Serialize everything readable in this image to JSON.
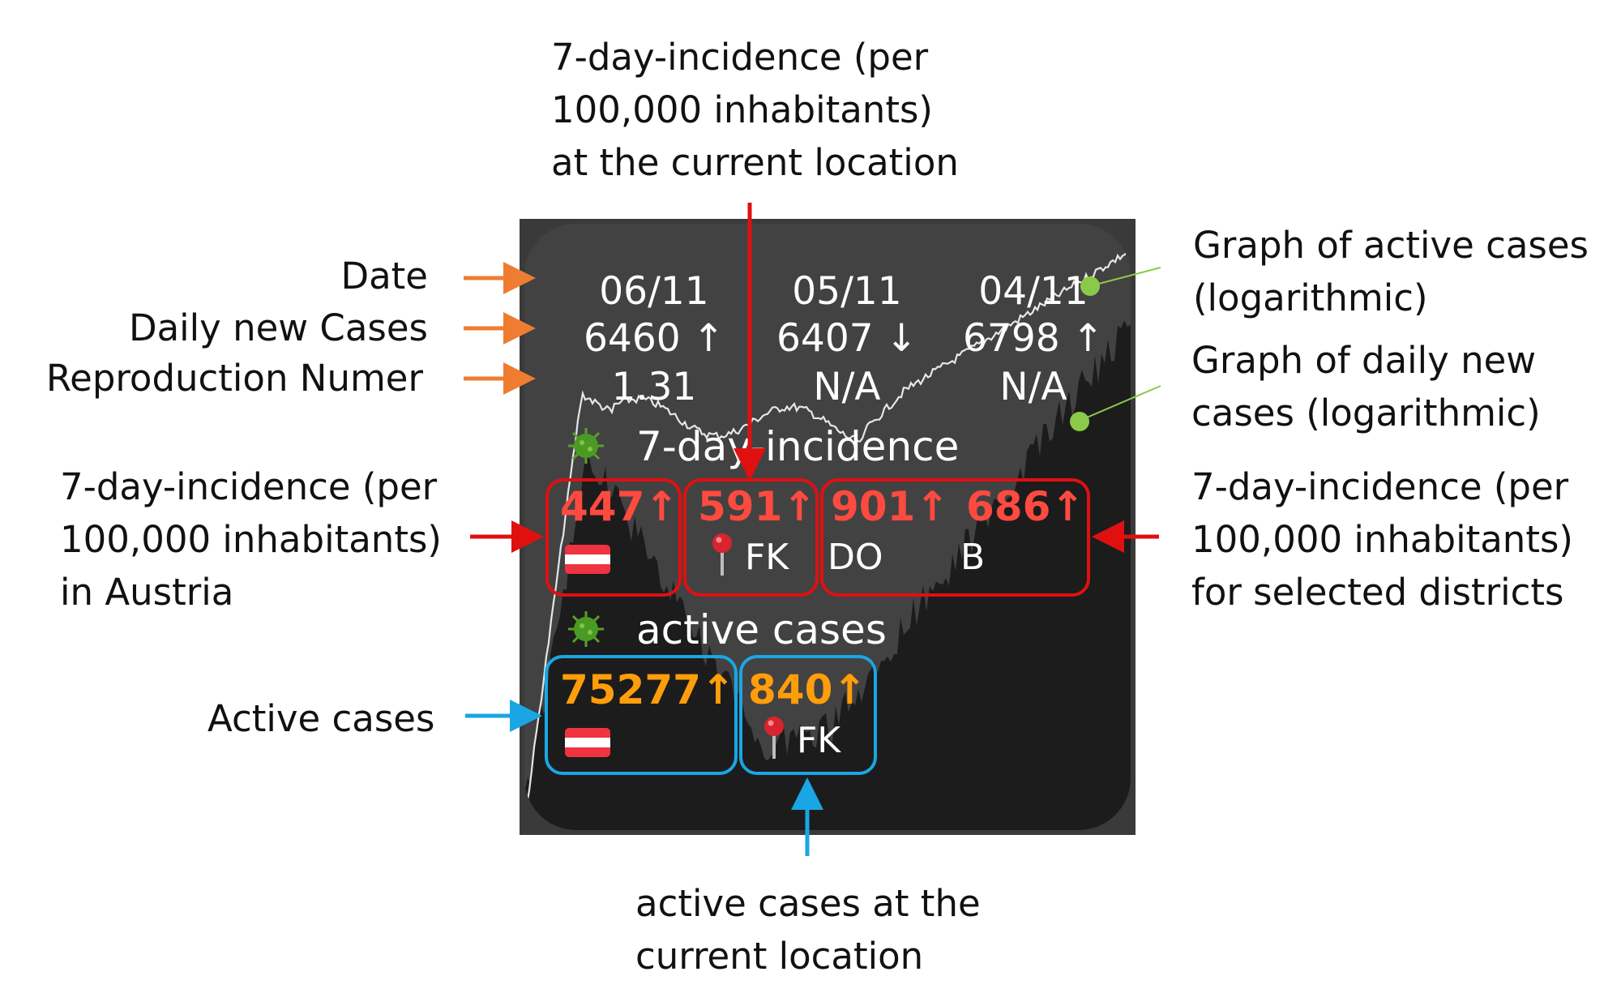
{
  "annotations": {
    "date": "Date",
    "daily_new_cases": "Daily new Cases",
    "reproduction_number": "Reproduction Numer",
    "incidence_austria": "7-day-incidence (per\n100,000 inhabitants)\nin Austria",
    "active_cases": "Active cases",
    "incidence_location": "7-day-incidence (per\n100,000 inhabitants)\nat the current location",
    "graph_active": "Graph of active cases\n(logarithmic)",
    "graph_daily": "Graph of daily new\ncases (logarithmic)",
    "incidence_districts": "7-day-incidence (per\n100,000 inhabitants)\nfor selected districts",
    "active_location": "active cases at the\ncurrent location"
  },
  "widget": {
    "days": [
      {
        "date": "06/11",
        "cases": "6460 ↑",
        "r": "1.31"
      },
      {
        "date": "05/11",
        "cases": "6407 ↓",
        "r": "N/A"
      },
      {
        "date": "04/11",
        "cases": "6798 ↑",
        "r": "N/A"
      }
    ],
    "incidence_title": "7-day-incidence",
    "incidence": [
      {
        "value": "447↑",
        "label": "",
        "marker": "austria-flag"
      },
      {
        "value": "591↑",
        "label": "FK",
        "marker": "pin"
      },
      {
        "value": "901↑",
        "label": "DO",
        "marker": ""
      },
      {
        "value": "686↑",
        "label": "B",
        "marker": ""
      }
    ],
    "active_title": "active cases",
    "active": [
      {
        "value": "75277↑",
        "label": "",
        "marker": "austria-flag"
      },
      {
        "value": "840↑",
        "label": "FK",
        "marker": "pin"
      }
    ]
  },
  "colors": {
    "incidence": "#ff4a40",
    "active": "#ff9d0a",
    "arrow_orange": "#ee7d31",
    "arrow_red": "#e01010",
    "arrow_blue": "#1aa6e4",
    "green_dot": "#8bc94a",
    "widget_bg": "#424242",
    "screen_bg": "#3a3a3a"
  },
  "icons": {
    "virus": "virus-icon",
    "pin": "map-pin-icon",
    "flag": "austria-flag-icon"
  }
}
